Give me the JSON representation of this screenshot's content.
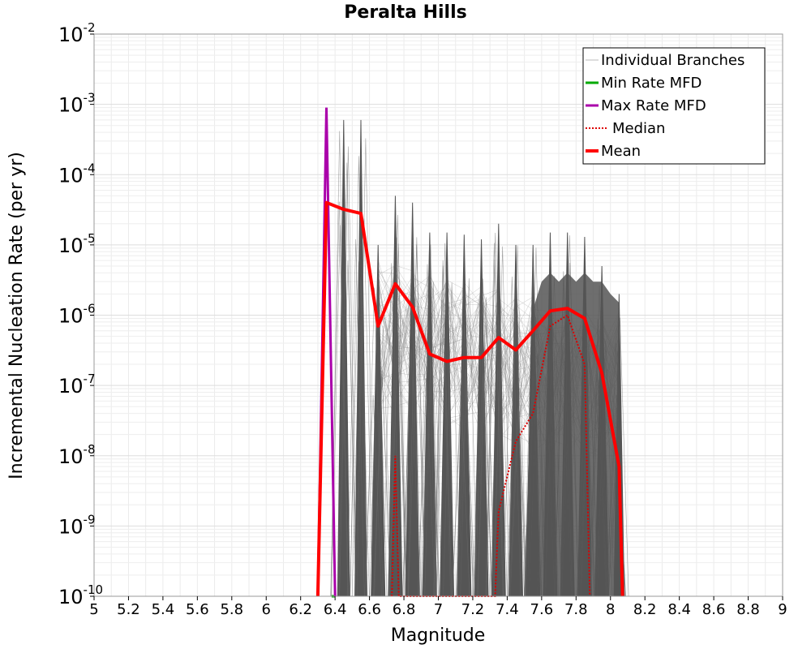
{
  "chart_data": {
    "type": "line",
    "title": "Peralta Hills",
    "xlabel": "Magnitude",
    "ylabel": "Incremental Nucleation Rate (per yr)",
    "xlim": [
      5,
      9
    ],
    "ylim": [
      1e-10,
      0.01
    ],
    "yscale": "log",
    "grid": true,
    "legend_position": "top-right",
    "x_ticks": [
      "5",
      "5.2",
      "5.4",
      "5.6",
      "5.8",
      "6",
      "6.2",
      "6.4",
      "6.6",
      "6.8",
      "7",
      "7.2",
      "7.4",
      "7.6",
      "7.8",
      "8",
      "8.2",
      "8.4",
      "8.6",
      "8.8",
      "9"
    ],
    "y_ticks": [
      {
        "base": "10",
        "exp": "-10"
      },
      {
        "base": "10",
        "exp": "-9"
      },
      {
        "base": "10",
        "exp": "-8"
      },
      {
        "base": "10",
        "exp": "-7"
      },
      {
        "base": "10",
        "exp": "-6"
      },
      {
        "base": "10",
        "exp": "-5"
      },
      {
        "base": "10",
        "exp": "-4"
      },
      {
        "base": "10",
        "exp": "-3"
      },
      {
        "base": "10",
        "exp": "-2"
      }
    ],
    "legend": [
      "Individual Branches",
      "Min Rate MFD",
      "Max Rate MFD",
      "Median",
      "Mean"
    ],
    "colors": {
      "branches": "#555555",
      "branches_light": "#bbbbbb",
      "min": "#00aa00",
      "max": "#aa00aa",
      "median": "#dd0000",
      "mean": "#ff0000"
    },
    "series": [
      {
        "name": "Mean",
        "x": [
          6.3,
          6.35,
          6.45,
          6.55,
          6.65,
          6.75,
          6.85,
          6.95,
          7.05,
          7.15,
          7.25,
          7.35,
          7.45,
          7.55,
          7.65,
          7.75,
          7.85,
          7.95,
          8.05,
          8.07
        ],
        "y": [
          1e-10,
          4e-05,
          3.2e-05,
          2.8e-05,
          7e-07,
          2.8e-06,
          1.3e-06,
          2.8e-07,
          2.2e-07,
          2.5e-07,
          2.5e-07,
          4.8e-07,
          3.2e-07,
          6e-07,
          1.15e-06,
          1.25e-06,
          9e-07,
          1.5e-07,
          7e-09,
          1e-10
        ]
      },
      {
        "name": "Median",
        "x": [
          6.73,
          6.75,
          6.77,
          7.33,
          7.35,
          7.45,
          7.55,
          7.65,
          7.75,
          7.85,
          7.88
        ],
        "y": [
          1e-10,
          1e-08,
          1e-10,
          1e-10,
          1.6e-09,
          1.6e-08,
          4e-08,
          7e-07,
          1e-06,
          2e-07,
          1e-10
        ]
      },
      {
        "name": "Max Rate MFD",
        "x": [
          6.3,
          6.35,
          6.4
        ],
        "y": [
          1e-10,
          0.0009,
          1e-10
        ]
      },
      {
        "name": "Min Rate MFD",
        "x": [
          6.38,
          6.4
        ],
        "y": [
          1e-10,
          1e-10
        ]
      },
      {
        "name": "Individual Branches",
        "spikes": [
          {
            "x": 6.45,
            "peak": 0.0006,
            "width": 0.035
          },
          {
            "x": 6.55,
            "peak": 0.0006,
            "width": 0.035
          },
          {
            "x": 6.65,
            "peak": 1e-05,
            "width": 0.04
          },
          {
            "x": 6.75,
            "peak": 5e-05,
            "width": 0.04
          },
          {
            "x": 6.85,
            "peak": 4e-05,
            "width": 0.04
          },
          {
            "x": 6.95,
            "peak": 1.5e-05,
            "width": 0.04
          },
          {
            "x": 7.05,
            "peak": 1.5e-05,
            "width": 0.04
          },
          {
            "x": 7.15,
            "peak": 1.4e-05,
            "width": 0.04
          },
          {
            "x": 7.25,
            "peak": 1.2e-05,
            "width": 0.04
          },
          {
            "x": 7.35,
            "peak": 2e-05,
            "width": 0.04
          },
          {
            "x": 7.45,
            "peak": 1e-05,
            "width": 0.04
          },
          {
            "x": 7.55,
            "peak": 1e-05,
            "width": 0.04
          },
          {
            "x": 7.65,
            "peak": 1.5e-05,
            "width": 0.04
          },
          {
            "x": 7.75,
            "peak": 1.5e-05,
            "width": 0.04
          },
          {
            "x": 7.85,
            "peak": 1.3e-05,
            "width": 0.04
          },
          {
            "x": 7.95,
            "peak": 5e-06,
            "width": 0.04
          },
          {
            "x": 8.05,
            "peak": 2e-06,
            "width": 0.03
          }
        ]
      }
    ]
  }
}
